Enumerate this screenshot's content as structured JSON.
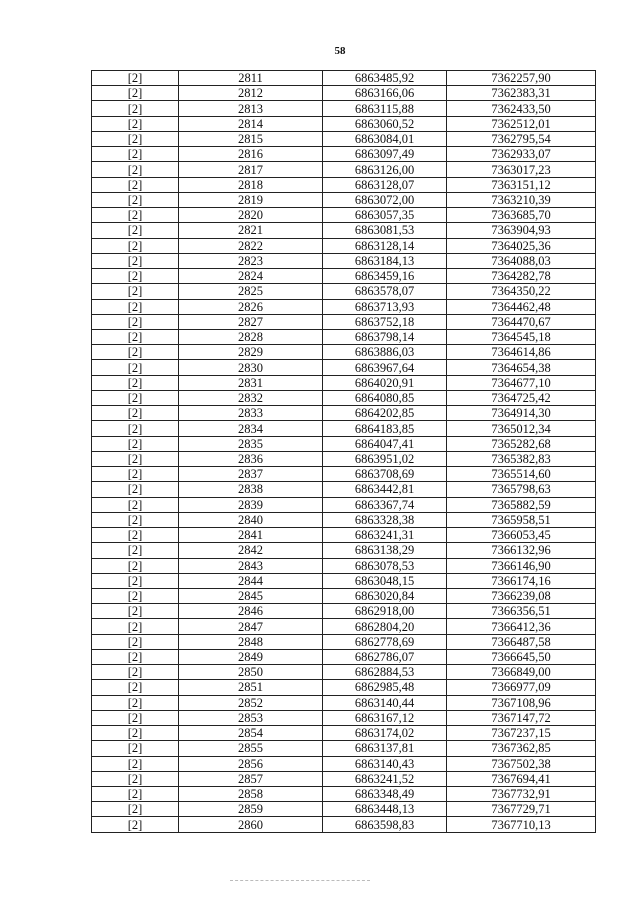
{
  "page_number": "58",
  "table": {
    "rows": [
      [
        "[2]",
        "2811",
        "6863485,92",
        "7362257,90"
      ],
      [
        "[2]",
        "2812",
        "6863166,06",
        "7362383,31"
      ],
      [
        "[2]",
        "2813",
        "6863115,88",
        "7362433,50"
      ],
      [
        "[2]",
        "2814",
        "6863060,52",
        "7362512,01"
      ],
      [
        "[2]",
        "2815",
        "6863084,01",
        "7362795,54"
      ],
      [
        "[2]",
        "2816",
        "6863097,49",
        "7362933,07"
      ],
      [
        "[2]",
        "2817",
        "6863126,00",
        "7363017,23"
      ],
      [
        "[2]",
        "2818",
        "6863128,07",
        "7363151,12"
      ],
      [
        "[2]",
        "2819",
        "6863072,00",
        "7363210,39"
      ],
      [
        "[2]",
        "2820",
        "6863057,35",
        "7363685,70"
      ],
      [
        "[2]",
        "2821",
        "6863081,53",
        "7363904,93"
      ],
      [
        "[2]",
        "2822",
        "6863128,14",
        "7364025,36"
      ],
      [
        "[2]",
        "2823",
        "6863184,13",
        "7364088,03"
      ],
      [
        "[2]",
        "2824",
        "6863459,16",
        "7364282,78"
      ],
      [
        "[2]",
        "2825",
        "6863578,07",
        "7364350,22"
      ],
      [
        "[2]",
        "2826",
        "6863713,93",
        "7364462,48"
      ],
      [
        "[2]",
        "2827",
        "6863752,18",
        "7364470,67"
      ],
      [
        "[2]",
        "2828",
        "6863798,14",
        "7364545,18"
      ],
      [
        "[2]",
        "2829",
        "6863886,03",
        "7364614,86"
      ],
      [
        "[2]",
        "2830",
        "6863967,64",
        "7364654,38"
      ],
      [
        "[2]",
        "2831",
        "6864020,91",
        "7364677,10"
      ],
      [
        "[2]",
        "2832",
        "6864080,85",
        "7364725,42"
      ],
      [
        "[2]",
        "2833",
        "6864202,85",
        "7364914,30"
      ],
      [
        "[2]",
        "2834",
        "6864183,85",
        "7365012,34"
      ],
      [
        "[2]",
        "2835",
        "6864047,41",
        "7365282,68"
      ],
      [
        "[2]",
        "2836",
        "6863951,02",
        "7365382,83"
      ],
      [
        "[2]",
        "2837",
        "6863708,69",
        "7365514,60"
      ],
      [
        "[2]",
        "2838",
        "6863442,81",
        "7365798,63"
      ],
      [
        "[2]",
        "2839",
        "6863367,74",
        "7365882,59"
      ],
      [
        "[2]",
        "2840",
        "6863328,38",
        "7365958,51"
      ],
      [
        "[2]",
        "2841",
        "6863241,31",
        "7366053,45"
      ],
      [
        "[2]",
        "2842",
        "6863138,29",
        "7366132,96"
      ],
      [
        "[2]",
        "2843",
        "6863078,53",
        "7366146,90"
      ],
      [
        "[2]",
        "2844",
        "6863048,15",
        "7366174,16"
      ],
      [
        "[2]",
        "2845",
        "6863020,84",
        "7366239,08"
      ],
      [
        "[2]",
        "2846",
        "6862918,00",
        "7366356,51"
      ],
      [
        "[2]",
        "2847",
        "6862804,20",
        "7366412,36"
      ],
      [
        "[2]",
        "2848",
        "6862778,69",
        "7366487,58"
      ],
      [
        "[2]",
        "2849",
        "6862786,07",
        "7366645,50"
      ],
      [
        "[2]",
        "2850",
        "6862884,53",
        "7366849,00"
      ],
      [
        "[2]",
        "2851",
        "6862985,48",
        "7366977,09"
      ],
      [
        "[2]",
        "2852",
        "6863140,44",
        "7367108,96"
      ],
      [
        "[2]",
        "2853",
        "6863167,12",
        "7367147,72"
      ],
      [
        "[2]",
        "2854",
        "6863174,02",
        "7367237,15"
      ],
      [
        "[2]",
        "2855",
        "6863137,81",
        "7367362,85"
      ],
      [
        "[2]",
        "2856",
        "6863140,43",
        "7367502,38"
      ],
      [
        "[2]",
        "2857",
        "6863241,52",
        "7367694,41"
      ],
      [
        "[2]",
        "2858",
        "6863348,49",
        "7367732,91"
      ],
      [
        "[2]",
        "2859",
        "6863448,13",
        "7367729,71"
      ],
      [
        "[2]",
        "2860",
        "6863598,83",
        "7367710,13"
      ]
    ]
  }
}
